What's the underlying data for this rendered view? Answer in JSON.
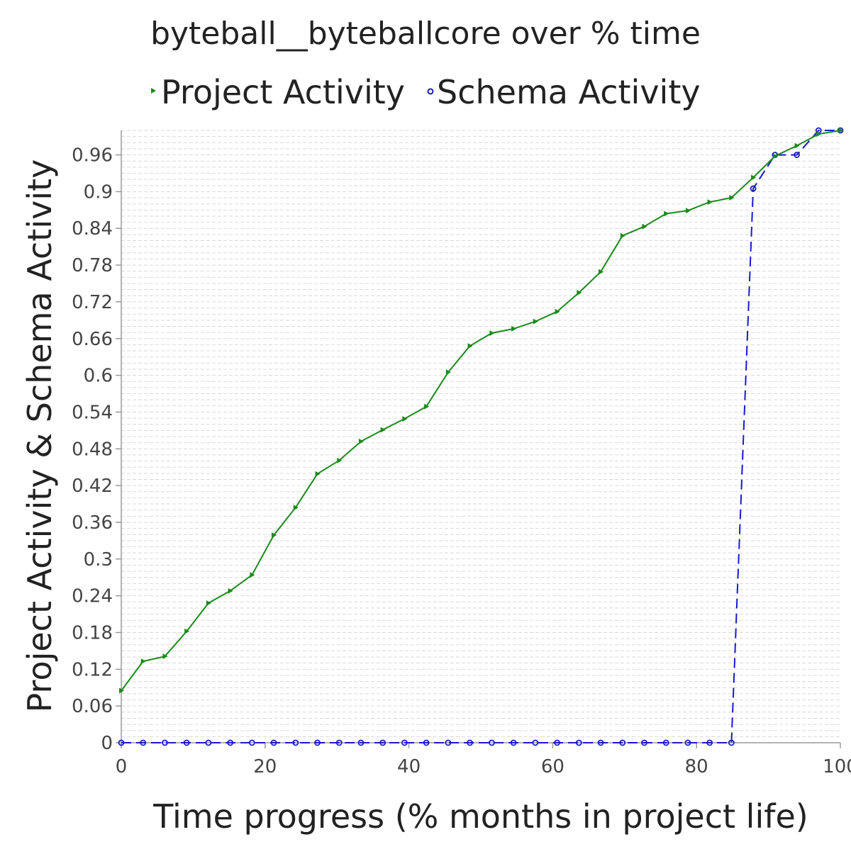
{
  "chart_data": {
    "type": "line",
    "title": "byteball__byteballcore over % time",
    "xlabel": "Time progress (% months in project life)",
    "ylabel": "Project Activity & Schema Activity",
    "xlim": [
      0,
      100
    ],
    "ylim": [
      0,
      1
    ],
    "x_ticks": [
      0,
      20,
      40,
      60,
      80,
      100
    ],
    "y_ticks": [
      0,
      0.06,
      0.12,
      0.18,
      0.24,
      0.3,
      0.36,
      0.42,
      0.48,
      0.54,
      0.6,
      0.66,
      0.72,
      0.78,
      0.84,
      0.9,
      0.96
    ],
    "y_tick_labels": [
      "0",
      "0.06",
      "0.12",
      "0.18",
      "0.24",
      "0.3",
      "0.36",
      "0.42",
      "0.48",
      "0.54",
      "0.6",
      "0.66",
      "0.72",
      "0.78",
      "0.84",
      "0.9",
      "0.96"
    ],
    "x_tick_labels": [
      "0",
      "20",
      "40",
      "60",
      "80",
      "100"
    ],
    "grid": true,
    "legend_position": "top",
    "series": [
      {
        "name": "Project Activity",
        "color": "#1a8a1a",
        "line_style": "solid",
        "marker": "triangle-right",
        "x": [
          0,
          3.03,
          6.06,
          9.09,
          12.12,
          15.15,
          18.18,
          21.21,
          24.24,
          27.27,
          30.3,
          33.33,
          36.36,
          39.39,
          42.42,
          45.45,
          48.48,
          51.52,
          54.55,
          57.58,
          60.61,
          63.64,
          66.67,
          69.7,
          72.73,
          75.76,
          78.79,
          81.82,
          84.85,
          87.88,
          90.91,
          93.94,
          96.97,
          100
        ],
        "values": [
          0.085,
          0.133,
          0.141,
          0.182,
          0.228,
          0.248,
          0.274,
          0.339,
          0.384,
          0.439,
          0.461,
          0.492,
          0.511,
          0.529,
          0.549,
          0.605,
          0.648,
          0.669,
          0.676,
          0.688,
          0.704,
          0.735,
          0.769,
          0.828,
          0.843,
          0.864,
          0.869,
          0.883,
          0.89,
          0.923,
          0.958,
          0.975,
          0.994,
          1.0
        ]
      },
      {
        "name": "Schema Activity",
        "color": "#1a1acc",
        "line_style": "dashed",
        "marker": "circle",
        "x": [
          0,
          3.03,
          6.06,
          9.09,
          12.12,
          15.15,
          18.18,
          21.21,
          24.24,
          27.27,
          30.3,
          33.33,
          36.36,
          39.39,
          42.42,
          45.45,
          48.48,
          51.52,
          54.55,
          57.58,
          60.61,
          63.64,
          66.67,
          69.7,
          72.73,
          75.76,
          78.79,
          81.82,
          84.85,
          87.88,
          90.91,
          93.94,
          96.97,
          100
        ],
        "values": [
          0,
          0,
          0,
          0,
          0,
          0,
          0,
          0,
          0,
          0,
          0,
          0,
          0,
          0,
          0,
          0,
          0,
          0,
          0,
          0,
          0,
          0,
          0,
          0,
          0,
          0,
          0,
          0,
          0,
          0.905,
          0.96,
          0.96,
          1.0,
          1.0
        ]
      }
    ]
  }
}
